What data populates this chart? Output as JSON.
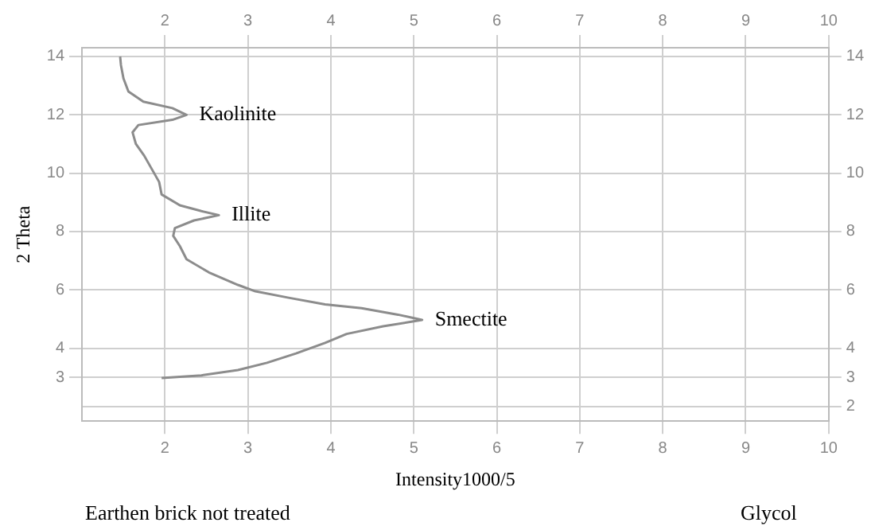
{
  "chart_data": {
    "type": "line",
    "xlabel": "Intensity1000/5",
    "ylabel": "2 Theta",
    "annotations": [
      {
        "text": "Kaolinite",
        "x": 2.26,
        "y": 12.0
      },
      {
        "text": "Illite",
        "x": 2.65,
        "y": 8.56
      },
      {
        "text": "Smectite",
        "x": 5.1,
        "y": 4.97
      },
      "Earthen brick not treated",
      "Glycol"
    ],
    "series": [
      {
        "color": "#8c8c8c",
        "x": [
          1.46,
          1.47,
          1.5,
          1.56,
          1.74,
          2.09,
          2.26,
          2.09,
          1.68,
          1.61,
          1.65,
          1.75,
          1.84,
          1.93,
          1.96,
          2.18,
          2.44,
          2.65,
          2.35,
          2.12,
          2.1,
          2.18,
          2.26,
          2.53,
          2.88,
          3.09,
          3.49,
          3.93,
          4.37,
          4.81,
          5.1,
          4.63,
          4.19,
          3.93,
          3.58,
          3.23,
          2.88,
          2.44,
          1.96
        ],
        "values": [
          14.0,
          13.7,
          13.25,
          12.8,
          12.45,
          12.23,
          12.0,
          11.83,
          11.65,
          11.4,
          11.0,
          10.6,
          10.15,
          9.7,
          9.27,
          8.9,
          8.7,
          8.56,
          8.38,
          8.12,
          7.85,
          7.5,
          7.05,
          6.6,
          6.17,
          5.95,
          5.73,
          5.5,
          5.37,
          5.15,
          4.97,
          4.75,
          4.49,
          4.18,
          3.82,
          3.5,
          3.25,
          3.07,
          2.98
        ]
      }
    ],
    "xlim": [
      1,
      10
    ],
    "xticks": [
      2,
      3,
      4,
      5,
      6,
      7,
      8,
      9,
      10
    ],
    "x2lim": [
      1,
      10
    ],
    "x2ticks": [
      2,
      3,
      4,
      5,
      6,
      7,
      8,
      9,
      10
    ],
    "ylim": [
      1.5,
      14.3
    ],
    "yticks": [
      3,
      4,
      6,
      8,
      10,
      12,
      14
    ],
    "y2lim": [
      1.5,
      14.3
    ],
    "y2ticks": [
      2,
      3,
      4,
      6,
      8,
      10,
      12,
      14
    ],
    "grid": true,
    "legend": false,
    "marker": "none",
    "line_style": "solid"
  }
}
